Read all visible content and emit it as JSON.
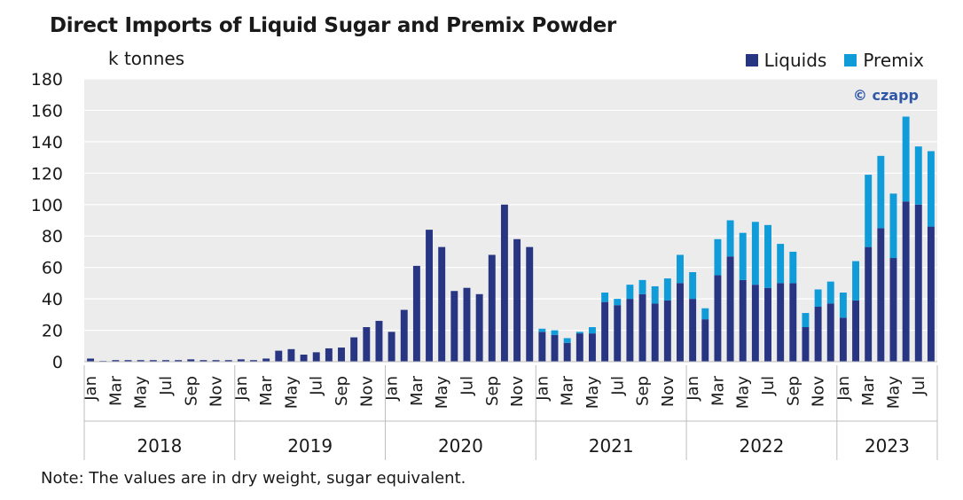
{
  "title": "Direct Imports of Liquid Sugar and Premix Powder",
  "unit_label": "k tonnes",
  "watermark": "© czapp",
  "note": "Note: The values are in dry weight, sugar equivalent.",
  "colors": {
    "liquids": "#283583",
    "premix": "#109bd9",
    "plot_bg": "#ececec"
  },
  "chart_data": {
    "type": "bar",
    "stacked": true,
    "title": "Direct Imports of Liquid Sugar and Premix Powder",
    "ylabel": "k tonnes",
    "ylim": [
      0,
      180
    ],
    "yticks": [
      0,
      20,
      40,
      60,
      80,
      100,
      120,
      140,
      160,
      180
    ],
    "grid": true,
    "legend_position": "top-right",
    "month_ticks": [
      "Jan",
      "Mar",
      "May",
      "Jul",
      "Sep",
      "Nov"
    ],
    "years": [
      "2018",
      "2019",
      "2020",
      "2021",
      "2022",
      "2023"
    ],
    "series": [
      {
        "name": "Liquids",
        "color": "#283583",
        "values": [
          2,
          0.5,
          1,
          1,
          1,
          1,
          1,
          1,
          1.5,
          1,
          1,
          1,
          1.5,
          1,
          2,
          7,
          8,
          4.5,
          6,
          8.5,
          9,
          15.5,
          22,
          26,
          19,
          33,
          61,
          84,
          73,
          45,
          47,
          43,
          68,
          100,
          78,
          73,
          19,
          17,
          12,
          18,
          18,
          38,
          36,
          40,
          43,
          37,
          39,
          50,
          40,
          27,
          55,
          67,
          52,
          49,
          47,
          50,
          50,
          22,
          35,
          37,
          28,
          39,
          73,
          85,
          66,
          102,
          100,
          86
        ]
      },
      {
        "name": "Premix",
        "color": "#109bd9",
        "values": [
          0,
          0,
          0,
          0,
          0,
          0,
          0,
          0,
          0,
          0,
          0,
          0,
          0,
          0,
          0,
          0,
          0,
          0,
          0,
          0,
          0,
          0,
          0,
          0,
          0,
          0,
          0,
          0,
          0,
          0,
          0,
          0,
          0,
          0,
          0,
          0,
          2,
          3,
          3,
          1,
          4,
          6,
          4,
          9,
          9,
          11,
          14,
          18,
          17,
          7,
          23,
          23,
          30,
          40,
          40,
          25,
          20,
          9,
          11,
          14,
          16,
          25,
          46,
          46,
          41,
          54,
          37,
          48
        ]
      }
    ]
  }
}
